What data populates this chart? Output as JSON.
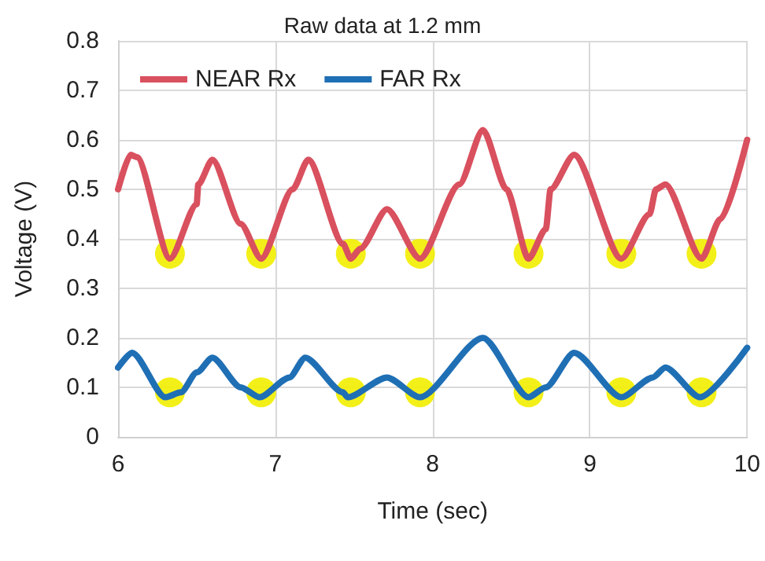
{
  "chart_data": {
    "type": "line",
    "title": "Raw data at 1.2 mm",
    "xlabel": "Time (sec)",
    "ylabel": "Voltage (V)",
    "xlim": [
      6,
      10
    ],
    "xticks": [
      6,
      7,
      8,
      9,
      10
    ],
    "ylim": [
      0,
      0.8
    ],
    "yticks": [
      0,
      0.1,
      0.2,
      0.3,
      0.4,
      0.5,
      0.6,
      0.7,
      0.8
    ],
    "grid": true,
    "legend": "top left",
    "series": [
      {
        "name": "NEAR Rx",
        "color": "#d9505e",
        "marker": "none",
        "x": [
          6.0,
          6.08,
          6.12,
          6.33,
          6.5,
          6.51,
          6.6,
          6.78,
          6.91,
          7.11,
          7.21,
          7.43,
          7.48,
          7.54,
          7.71,
          7.92,
          8.17,
          8.32,
          8.47,
          8.61,
          8.72,
          8.75,
          8.9,
          9.2,
          9.38,
          9.42,
          9.48,
          9.71,
          9.83,
          10.0
        ],
        "values": [
          0.5,
          0.57,
          0.565,
          0.36,
          0.47,
          0.51,
          0.56,
          0.43,
          0.36,
          0.5,
          0.56,
          0.39,
          0.36,
          0.38,
          0.46,
          0.36,
          0.51,
          0.62,
          0.5,
          0.36,
          0.42,
          0.5,
          0.57,
          0.36,
          0.45,
          0.5,
          0.51,
          0.36,
          0.44,
          0.6
        ]
      },
      {
        "name": "FAR Rx",
        "color": "#1f6fb5",
        "marker": "none",
        "x": [
          6.0,
          6.09,
          6.3,
          6.4,
          6.5,
          6.6,
          6.78,
          6.9,
          7.09,
          7.19,
          7.43,
          7.46,
          7.71,
          7.92,
          8.32,
          8.61,
          8.72,
          8.9,
          9.2,
          9.4,
          9.48,
          9.7,
          10.0
        ],
        "values": [
          0.14,
          0.17,
          0.08,
          0.09,
          0.13,
          0.16,
          0.1,
          0.08,
          0.12,
          0.16,
          0.09,
          0.08,
          0.12,
          0.08,
          0.2,
          0.08,
          0.1,
          0.17,
          0.08,
          0.12,
          0.14,
          0.08,
          0.18
        ]
      },
      {
        "type": "scatter",
        "color": "#f2ee00",
        "marker": "circle",
        "x": [
          6.33,
          6.91,
          7.48,
          7.92,
          8.61,
          9.2,
          9.71,
          6.33,
          6.91,
          7.48,
          7.92,
          8.61,
          9.2,
          9.71
        ],
        "values": [
          0.37,
          0.37,
          0.37,
          0.37,
          0.37,
          0.37,
          0.37,
          0.09,
          0.09,
          0.09,
          0.09,
          0.09,
          0.09,
          0.09
        ]
      }
    ]
  }
}
